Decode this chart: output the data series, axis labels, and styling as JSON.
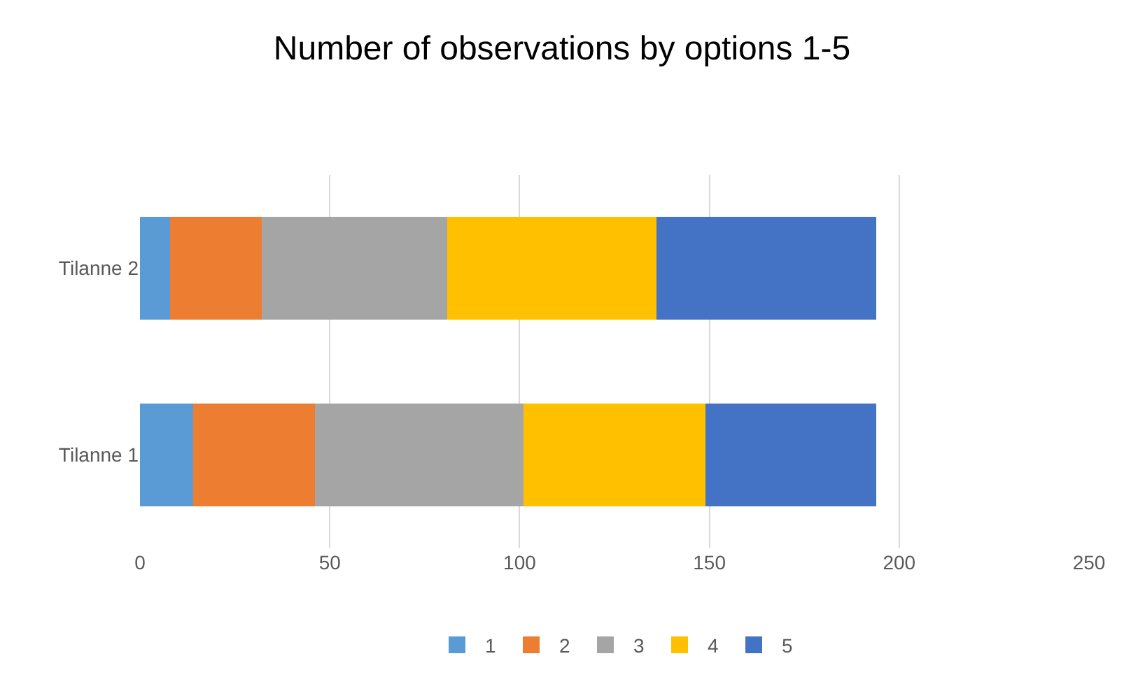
{
  "chart_data": {
    "type": "bar",
    "orientation": "horizontal",
    "stacked": true,
    "title": "Number of observations by options 1-5",
    "categories": [
      "Tilanne 2",
      "Tilanne 1"
    ],
    "series": [
      {
        "name": "1",
        "color": "#5b9bd5",
        "values": [
          8,
          14
        ]
      },
      {
        "name": "2",
        "color": "#ed7d31",
        "values": [
          24,
          32
        ]
      },
      {
        "name": "3",
        "color": "#a5a5a5",
        "values": [
          49,
          55
        ]
      },
      {
        "name": "4",
        "color": "#ffc000",
        "values": [
          55,
          48
        ]
      },
      {
        "name": "5",
        "color": "#4472c4",
        "values": [
          58,
          45
        ]
      }
    ],
    "xlim": [
      0,
      250
    ],
    "xticks": [
      0,
      50,
      100,
      150,
      200,
      250
    ],
    "grid": "x",
    "legend": "bottom"
  }
}
